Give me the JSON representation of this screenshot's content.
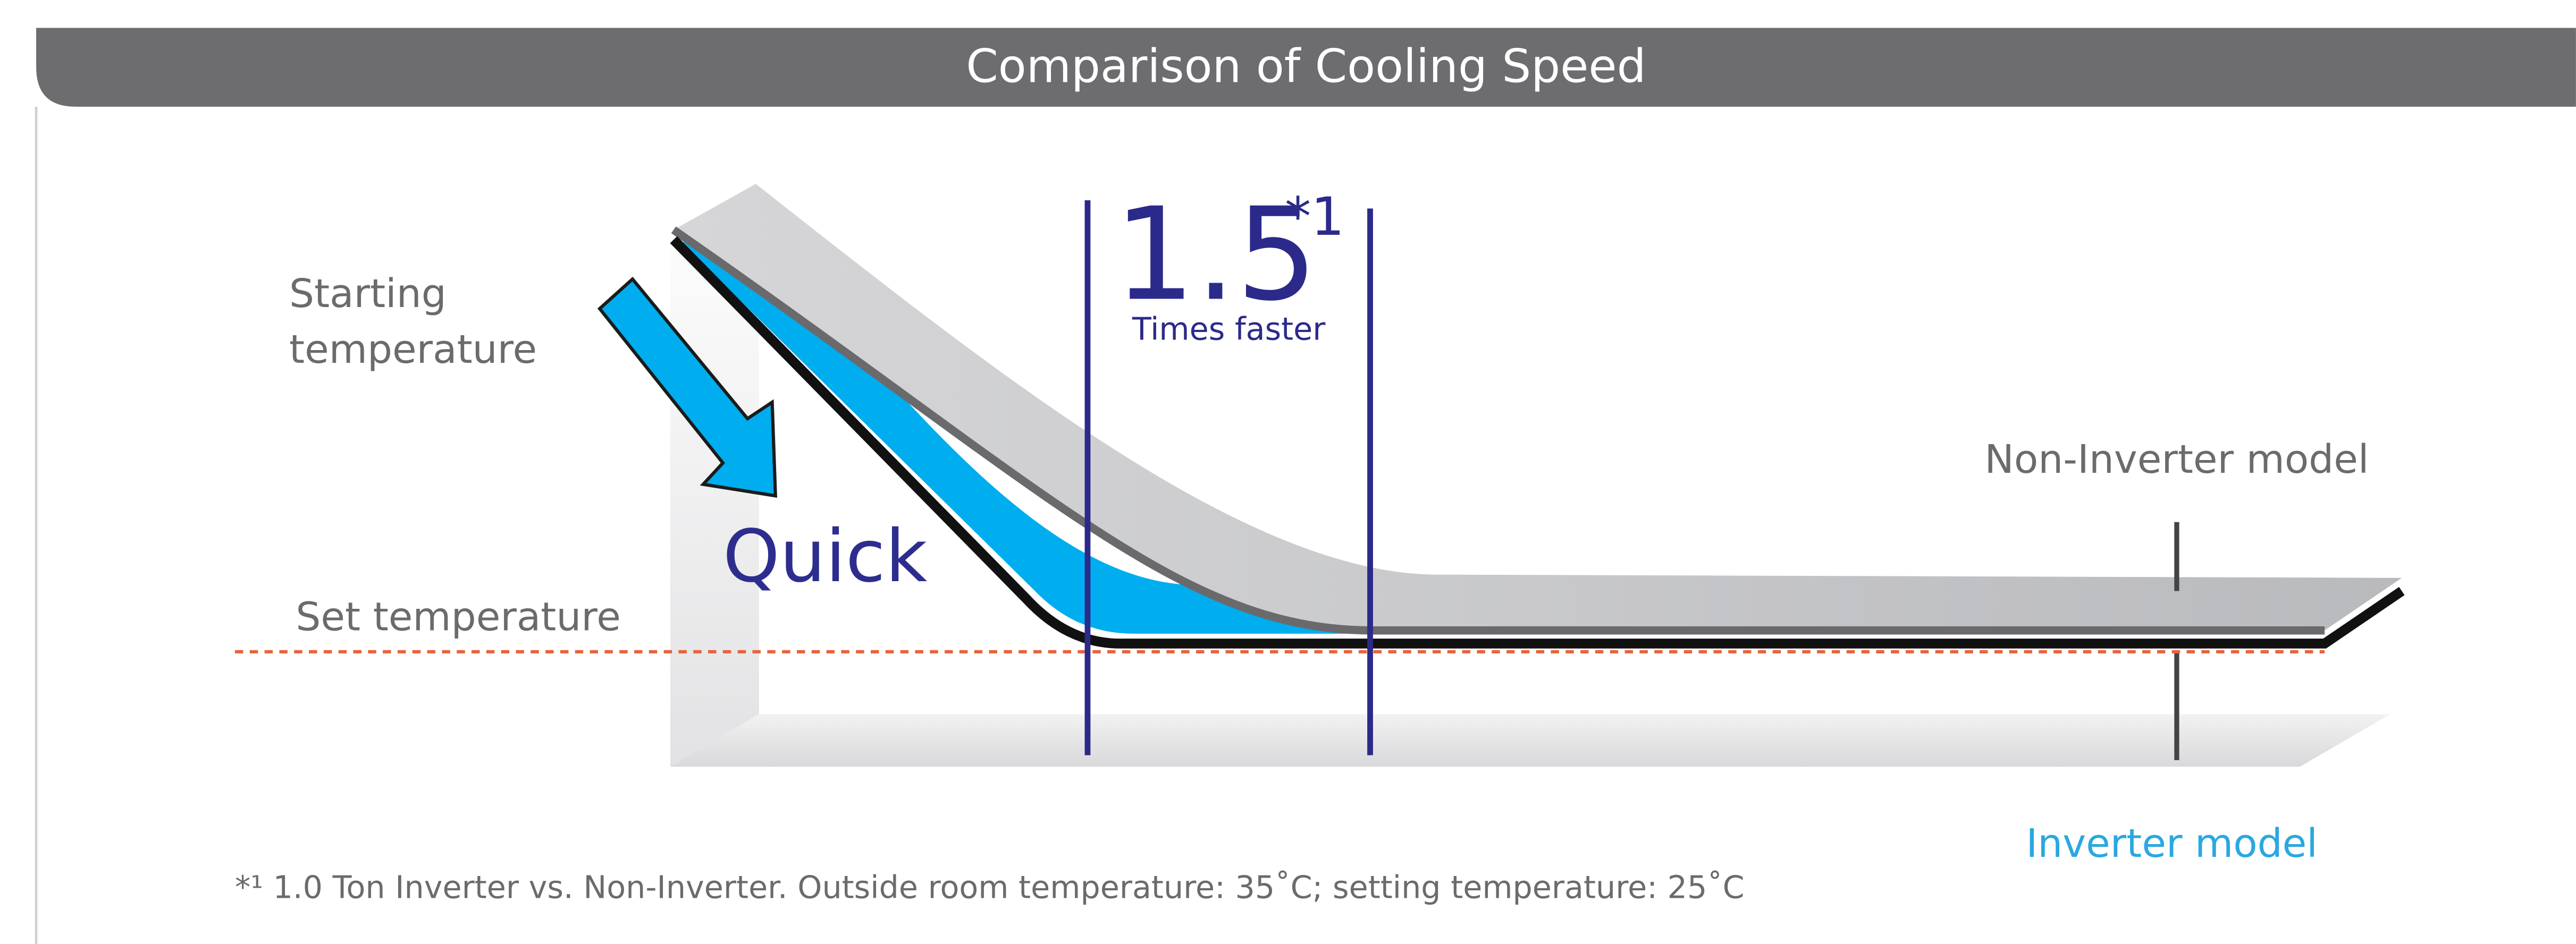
{
  "header": {
    "title": "Comparison of Cooling Speed"
  },
  "labels": {
    "starting_temperature": [
      "Starting",
      "temperature"
    ],
    "set_temperature": "Set temperature",
    "quick": "Quick",
    "non_inverter_model": "Non-Inverter model",
    "inverter_model": "Inverter model"
  },
  "ratio": {
    "value": "1.5",
    "marker": "*1",
    "caption": "Times faster"
  },
  "footnote": "*¹ 1.0 Ton Inverter vs. Non-Inverter. Outside room temperature: 35˚C; setting temperature: 25˚C"
}
